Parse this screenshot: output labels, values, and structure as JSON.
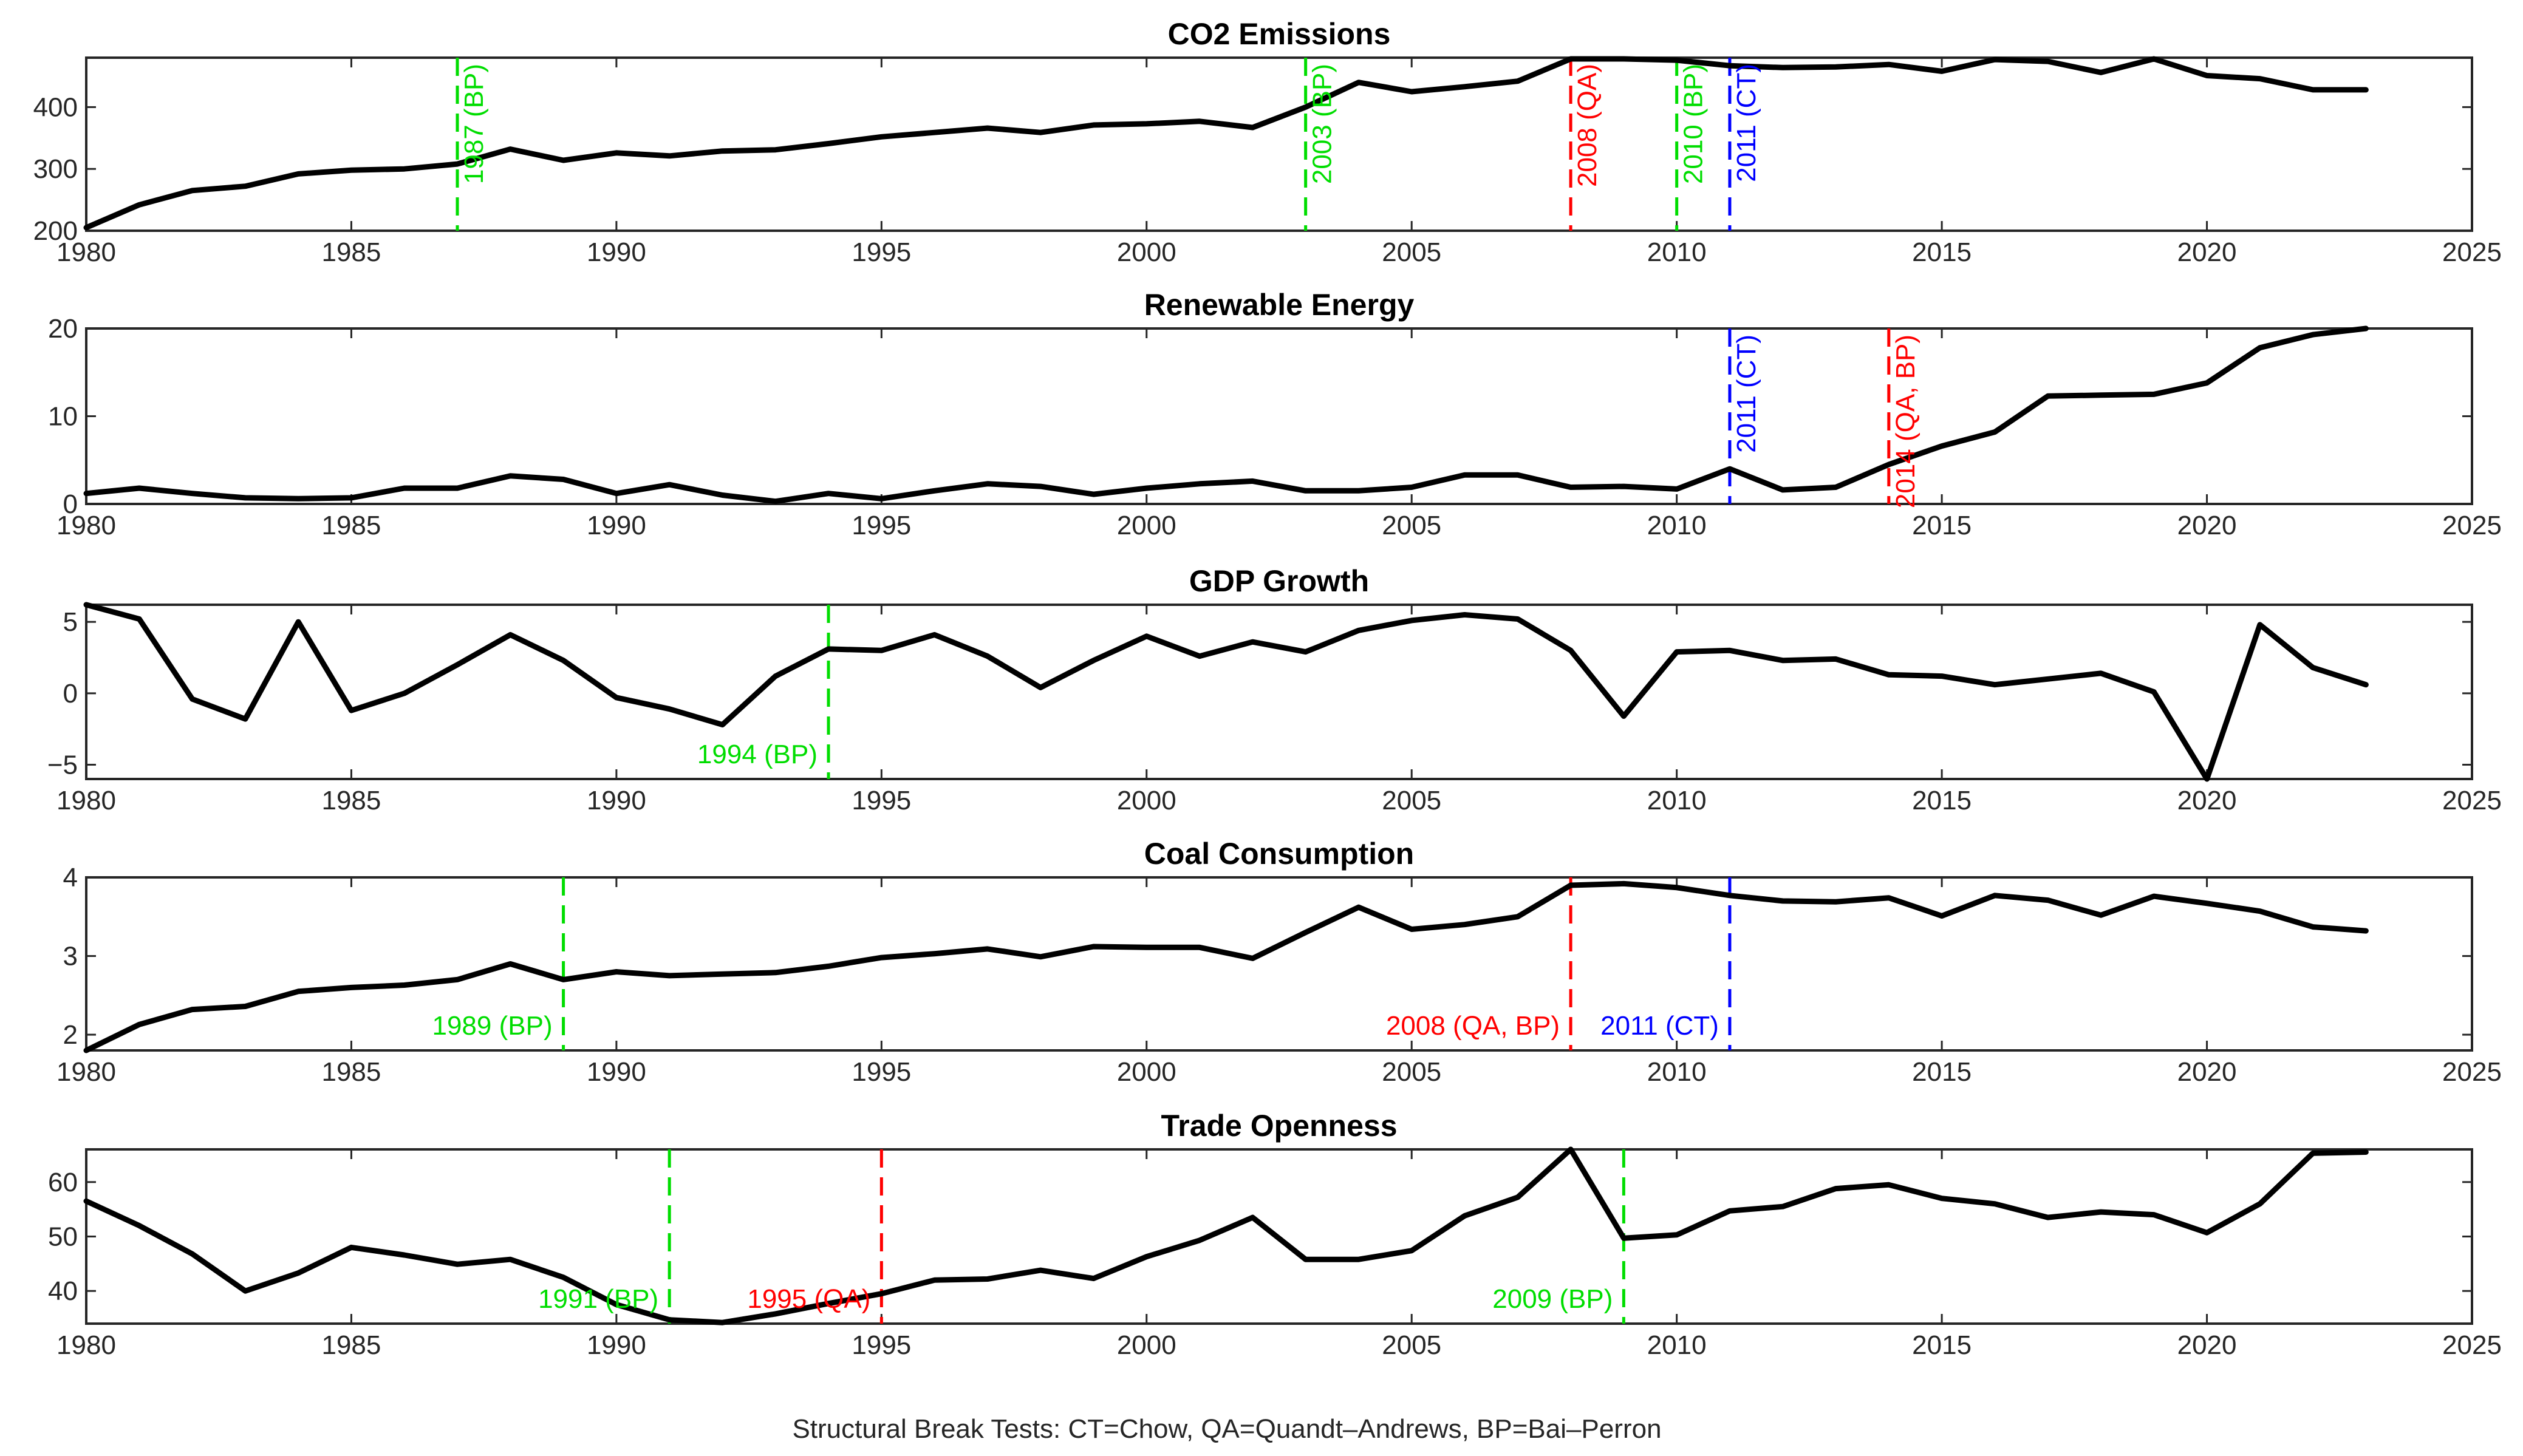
{
  "figure": {
    "caption": "Structural Break Tests: CT=Chow, QA=Quandt–Andrews, BP=Bai–Perron"
  },
  "colors": {
    "line": "#000000",
    "axis": "#262626",
    "CT": "#0000FF",
    "QA": "#FF0000",
    "BP": "#00DD00"
  },
  "chart_data": [
    {
      "type": "line",
      "title": "CO2 Emissions",
      "xlim": [
        1980,
        2025
      ],
      "ylim": [
        200,
        480
      ],
      "xticks": [
        1980,
        1985,
        1990,
        1995,
        2000,
        2005,
        2010,
        2015,
        2020,
        2025
      ],
      "yticks": [
        200,
        300,
        400
      ],
      "x": [
        1980,
        1981,
        1982,
        1983,
        1984,
        1985,
        1986,
        1987,
        1988,
        1989,
        1990,
        1991,
        1992,
        1993,
        1994,
        1995,
        1996,
        1997,
        1998,
        1999,
        2000,
        2001,
        2002,
        2003,
        2004,
        2005,
        2006,
        2007,
        2008,
        2009,
        2010,
        2011,
        2012,
        2013,
        2014,
        2015,
        2016,
        2017,
        2018,
        2019,
        2020,
        2021,
        2022,
        2023
      ],
      "y": [
        205,
        242,
        265,
        272,
        292,
        298,
        300,
        308,
        332,
        314,
        326,
        321,
        329,
        331,
        341,
        352,
        359,
        366,
        359,
        371,
        373,
        377,
        367,
        400,
        440,
        425,
        433,
        442,
        478,
        478,
        476,
        467,
        464,
        465,
        469,
        458,
        477,
        474,
        456,
        478,
        451,
        446,
        428,
        428
      ],
      "breaks": [
        {
          "year": 1987,
          "label": "1987 (BP)",
          "test": "BP",
          "label_pos": "vertical-top"
        },
        {
          "year": 2003,
          "label": "2003 (BP)",
          "test": "BP",
          "label_pos": "vertical-top"
        },
        {
          "year": 2008,
          "label": "2008 (QA)",
          "test": "QA",
          "label_pos": "vertical-top"
        },
        {
          "year": 2010,
          "label": "2010 (BP)",
          "test": "BP",
          "label_pos": "vertical-top"
        },
        {
          "year": 2011,
          "label": "2011 (CT)",
          "test": "CT",
          "label_pos": "vertical-top"
        }
      ]
    },
    {
      "type": "line",
      "title": "Renewable Energy",
      "xlim": [
        1980,
        2025
      ],
      "ylim": [
        0,
        20
      ],
      "xticks": [
        1980,
        1985,
        1990,
        1995,
        2000,
        2005,
        2010,
        2015,
        2020,
        2025
      ],
      "yticks": [
        0,
        10,
        20
      ],
      "x": [
        1980,
        1981,
        1982,
        1983,
        1984,
        1985,
        1986,
        1987,
        1988,
        1989,
        1990,
        1991,
        1992,
        1993,
        1994,
        1995,
        1996,
        1997,
        1998,
        1999,
        2000,
        2001,
        2002,
        2003,
        2004,
        2005,
        2006,
        2007,
        2008,
        2009,
        2010,
        2011,
        2012,
        2013,
        2014,
        2015,
        2016,
        2017,
        2018,
        2019,
        2020,
        2021,
        2022,
        2023
      ],
      "y": [
        1.2,
        1.8,
        1.2,
        0.7,
        0.6,
        0.7,
        1.8,
        1.8,
        3.2,
        2.8,
        1.2,
        2.2,
        1.0,
        0.3,
        1.2,
        0.6,
        1.5,
        2.3,
        2.0,
        1.1,
        1.8,
        2.3,
        2.6,
        1.5,
        1.5,
        1.9,
        3.3,
        3.3,
        1.9,
        2.0,
        1.7,
        4.0,
        1.6,
        1.9,
        4.5,
        6.6,
        8.2,
        12.3,
        12.4,
        12.5,
        13.8,
        17.8,
        19.3,
        20.0
      ],
      "breaks": [
        {
          "year": 2011,
          "label": "2011 (CT)",
          "test": "CT",
          "label_pos": "vertical-top"
        },
        {
          "year": 2014,
          "label": "2014 (QA, BP)",
          "test": "QA",
          "label_pos": "vertical-top"
        }
      ]
    },
    {
      "type": "line",
      "title": "GDP Growth",
      "xlim": [
        1980,
        2025
      ],
      "ylim": [
        -6,
        6.2
      ],
      "xticks": [
        1980,
        1985,
        1990,
        1995,
        2000,
        2005,
        2010,
        2015,
        2020,
        2025
      ],
      "yticks": [
        -5,
        0,
        5
      ],
      "x": [
        1980,
        1981,
        1982,
        1983,
        1984,
        1985,
        1986,
        1987,
        1988,
        1989,
        1990,
        1991,
        1992,
        1993,
        1994,
        1995,
        1996,
        1997,
        1998,
        1999,
        2000,
        2001,
        2002,
        2003,
        2004,
        2005,
        2006,
        2007,
        2008,
        2009,
        2010,
        2011,
        2012,
        2013,
        2014,
        2015,
        2016,
        2017,
        2018,
        2019,
        2020,
        2021,
        2022,
        2023
      ],
      "y": [
        6.2,
        5.2,
        -0.4,
        -1.8,
        5.0,
        -1.2,
        0.0,
        2.0,
        4.1,
        2.3,
        -0.3,
        -1.1,
        -2.2,
        1.2,
        3.1,
        3.0,
        4.1,
        2.6,
        0.4,
        2.3,
        4.0,
        2.6,
        3.6,
        2.9,
        4.4,
        5.1,
        5.5,
        5.2,
        3.0,
        -1.6,
        2.9,
        3.0,
        2.3,
        2.4,
        1.3,
        1.2,
        0.6,
        1.0,
        1.4,
        0.1,
        -6.0,
        4.8,
        1.8,
        0.6
      ],
      "breaks": [
        {
          "year": 1994,
          "label": "1994 (BP)",
          "test": "BP",
          "label_pos": "bottom-left"
        }
      ]
    },
    {
      "type": "line",
      "title": "Coal Consumption",
      "xlim": [
        1980,
        2025
      ],
      "ylim": [
        1.8,
        4
      ],
      "xticks": [
        1980,
        1985,
        1990,
        1995,
        2000,
        2005,
        2010,
        2015,
        2020,
        2025
      ],
      "yticks": [
        2,
        3,
        4
      ],
      "x": [
        1980,
        1981,
        1982,
        1983,
        1984,
        1985,
        1986,
        1987,
        1988,
        1989,
        1990,
        1991,
        1992,
        1993,
        1994,
        1995,
        1996,
        1997,
        1998,
        1999,
        2000,
        2001,
        2002,
        2003,
        2004,
        2005,
        2006,
        2007,
        2008,
        2009,
        2010,
        2011,
        2012,
        2013,
        2014,
        2015,
        2016,
        2017,
        2018,
        2019,
        2020,
        2021,
        2022,
        2023
      ],
      "y": [
        1.8,
        2.13,
        2.32,
        2.36,
        2.55,
        2.6,
        2.63,
        2.7,
        2.9,
        2.7,
        2.8,
        2.75,
        2.77,
        2.79,
        2.87,
        2.98,
        3.03,
        3.09,
        2.99,
        3.12,
        3.11,
        3.11,
        2.97,
        3.3,
        3.62,
        3.34,
        3.4,
        3.5,
        3.9,
        3.92,
        3.87,
        3.77,
        3.7,
        3.69,
        3.74,
        3.51,
        3.77,
        3.71,
        3.52,
        3.76,
        3.67,
        3.57,
        3.37,
        3.32
      ],
      "breaks": [
        {
          "year": 1989,
          "label": "1989 (BP)",
          "test": "BP",
          "label_pos": "bottom-left"
        },
        {
          "year": 2008,
          "label": "2008 (QA, BP)",
          "test": "QA",
          "label_pos": "bottom-left"
        },
        {
          "year": 2011,
          "label": "2011 (CT)",
          "test": "CT",
          "label_pos": "bottom-left"
        }
      ]
    },
    {
      "type": "line",
      "title": "Trade Openness",
      "xlim": [
        1980,
        2025
      ],
      "ylim": [
        34,
        66
      ],
      "xticks": [
        1980,
        1985,
        1990,
        1995,
        2000,
        2005,
        2010,
        2015,
        2020,
        2025
      ],
      "yticks": [
        40,
        50,
        60
      ],
      "x": [
        1980,
        1981,
        1982,
        1983,
        1984,
        1985,
        1986,
        1987,
        1988,
        1989,
        1990,
        1991,
        1992,
        1993,
        1994,
        1995,
        1996,
        1997,
        1998,
        1999,
        2000,
        2001,
        2002,
        2003,
        2004,
        2005,
        2006,
        2007,
        2008,
        2009,
        2010,
        2011,
        2012,
        2013,
        2014,
        2015,
        2016,
        2017,
        2018,
        2019,
        2020,
        2021,
        2022,
        2023
      ],
      "y": [
        56.5,
        52.0,
        46.8,
        40.0,
        43.3,
        48.0,
        46.6,
        44.9,
        45.8,
        42.5,
        37.5,
        34.7,
        34.2,
        35.8,
        37.7,
        39.5,
        42.0,
        42.2,
        43.8,
        42.3,
        46.3,
        49.3,
        53.5,
        45.8,
        45.8,
        47.4,
        53.8,
        57.2,
        66.0,
        49.7,
        50.3,
        54.7,
        55.5,
        58.8,
        59.5,
        57.0,
        56.0,
        53.5,
        54.5,
        54.0,
        50.7,
        56.0,
        65.3,
        65.5
      ],
      "breaks": [
        {
          "year": 1991,
          "label": "1991 (BP)",
          "test": "BP",
          "label_pos": "bottom-left"
        },
        {
          "year": 1995,
          "label": "1995 (QA)",
          "test": "QA",
          "label_pos": "bottom-left"
        },
        {
          "year": 2009,
          "label": "2009 (BP)",
          "test": "BP",
          "label_pos": "bottom-left"
        }
      ]
    }
  ]
}
